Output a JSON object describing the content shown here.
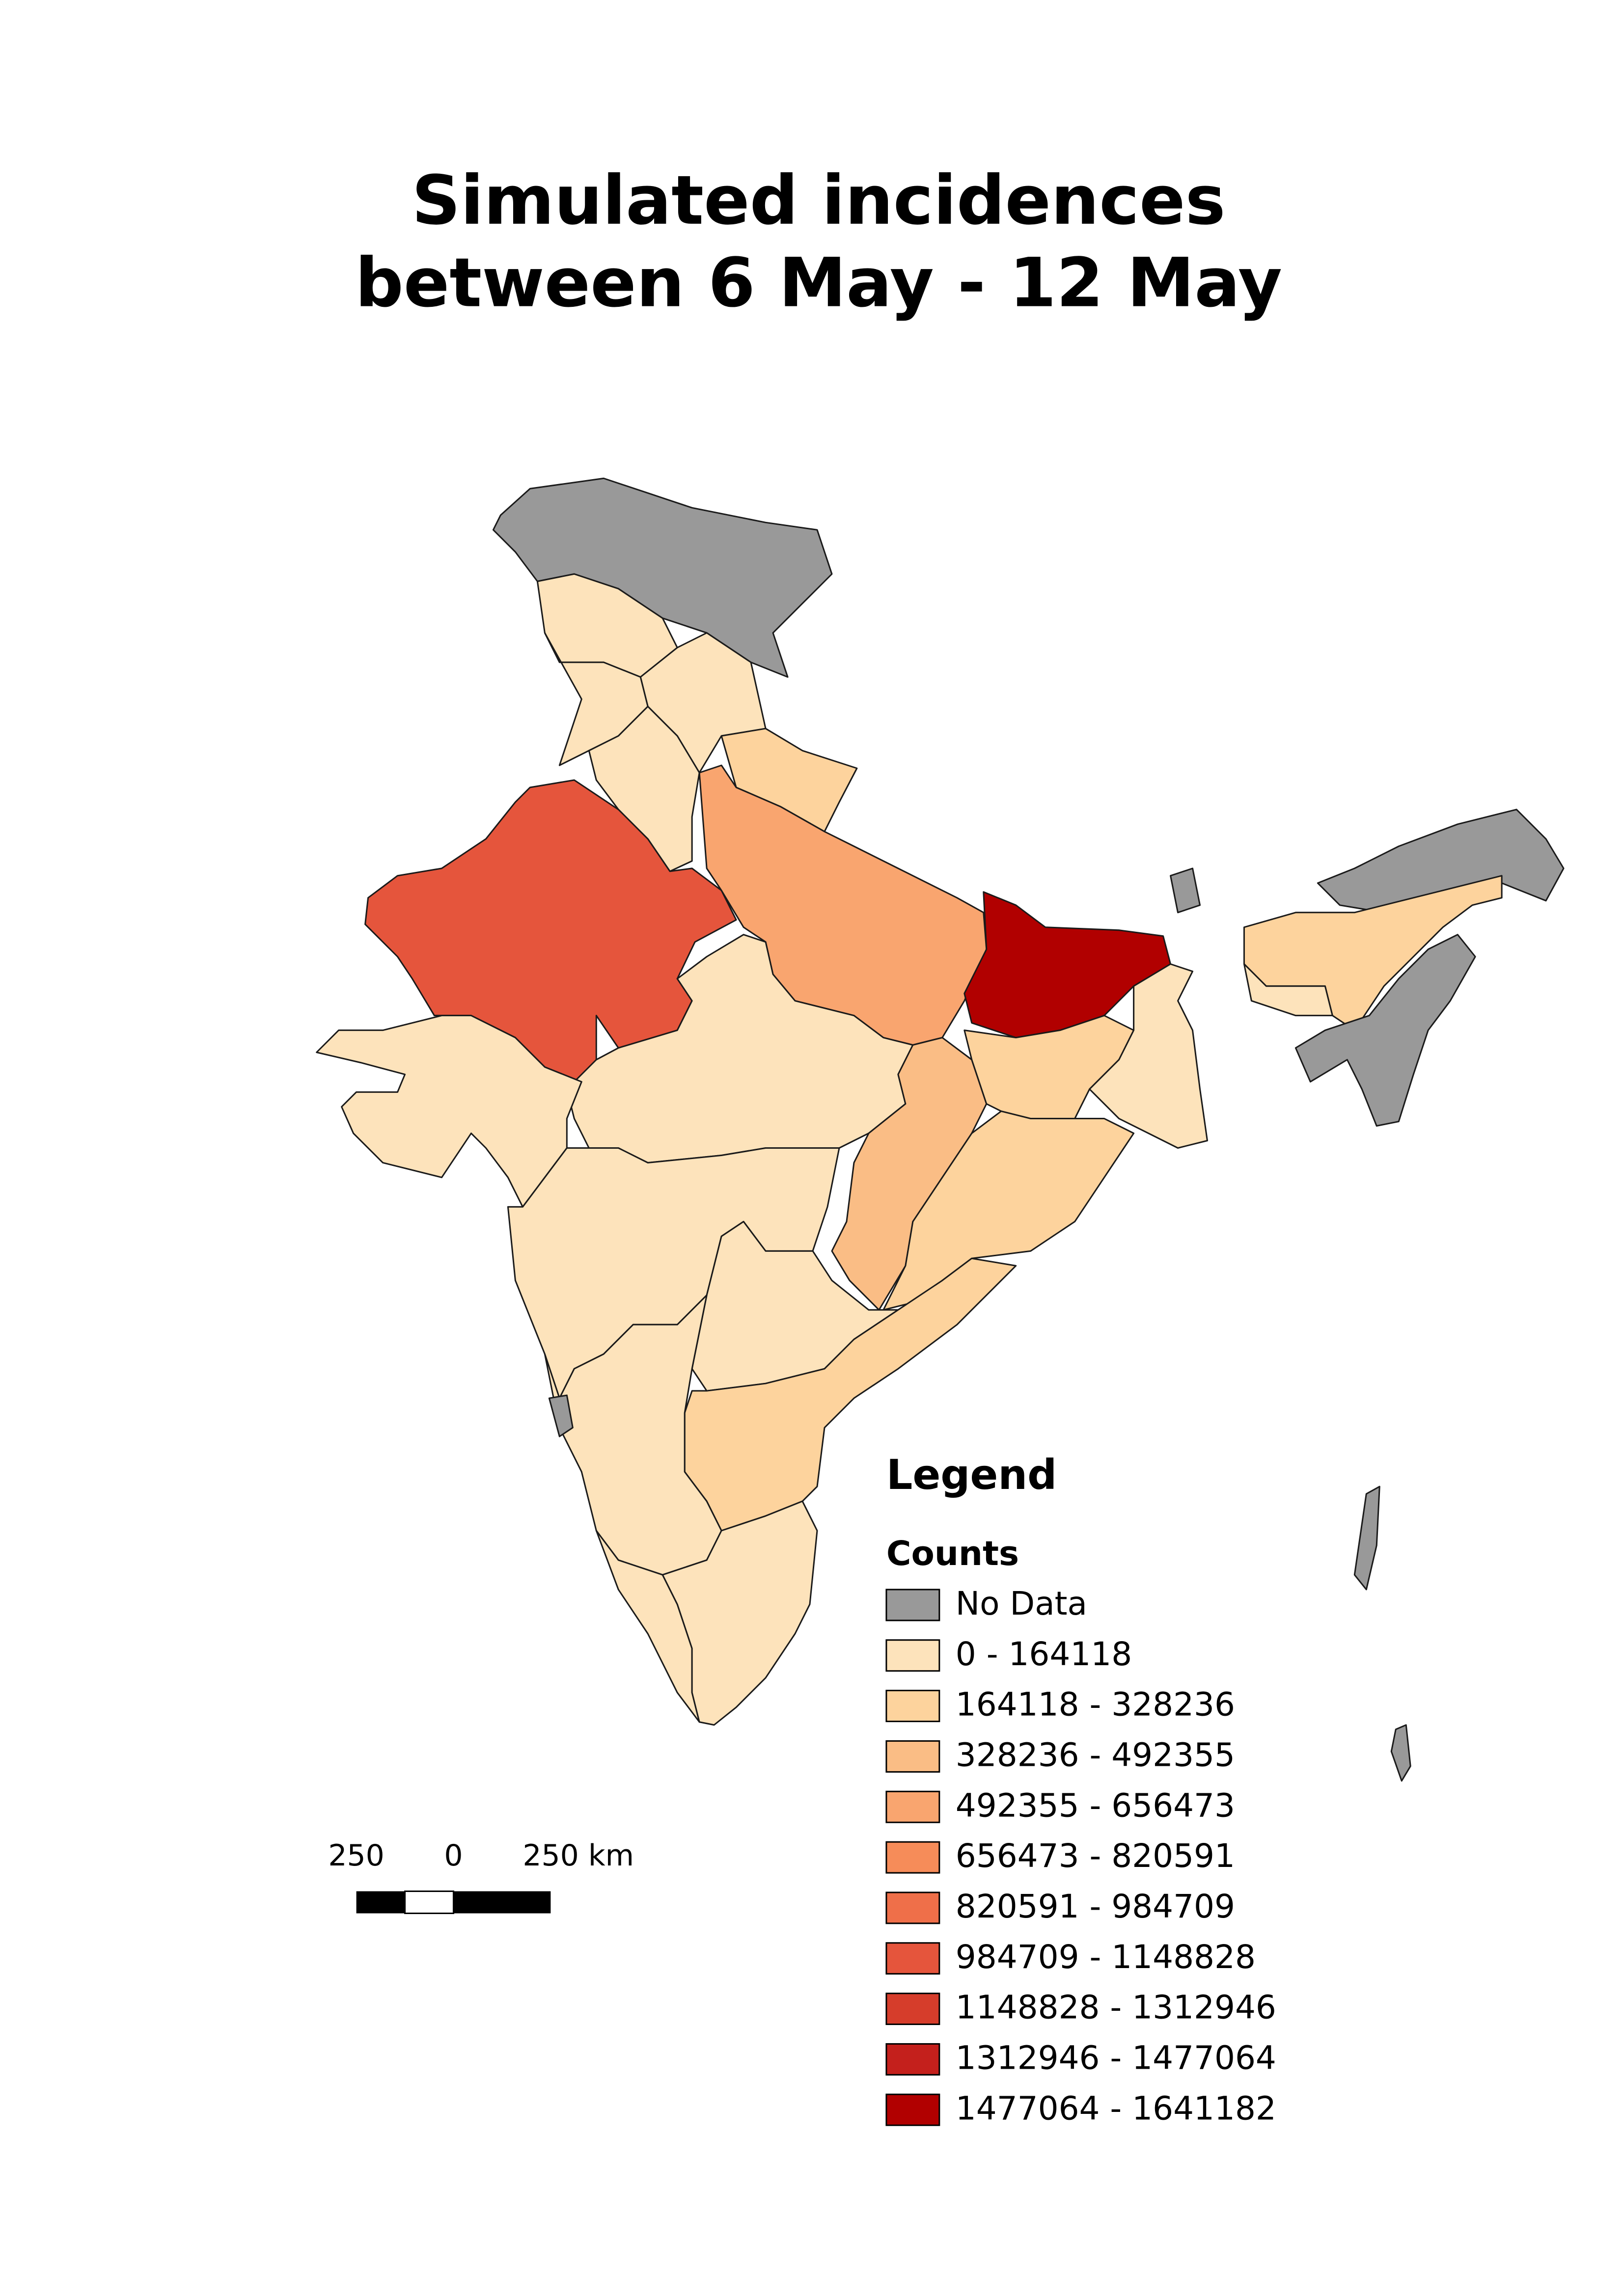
{
  "title": [
    "Simulated incidences",
    "between 6 May - 12 May"
  ],
  "legend": {
    "title": "Legend",
    "subtitle": "Counts",
    "classes": [
      {
        "label": "No Data",
        "color": "#999999"
      },
      {
        "label": "0 - 164118",
        "color": "#fde3bb"
      },
      {
        "label": "164118 - 328236",
        "color": "#fdd39d"
      },
      {
        "label": "328236 - 492355",
        "color": "#fabd85"
      },
      {
        "label": "492355 - 656473",
        "color": "#f9a56f"
      },
      {
        "label": "656473 - 820591",
        "color": "#f68c59"
      },
      {
        "label": "820591 - 984709",
        "color": "#ef6f49"
      },
      {
        "label": "984709 - 1148828",
        "color": "#e5553c"
      },
      {
        "label": "1148828 - 1312946",
        "color": "#d63d2b"
      },
      {
        "label": "1312946 - 1477064",
        "color": "#c4201c"
      },
      {
        "label": "1477064 - 1641182",
        "color": "#b10000"
      }
    ]
  },
  "scale_bar": {
    "labels": [
      "250",
      "0",
      "250 km"
    ]
  }
}
